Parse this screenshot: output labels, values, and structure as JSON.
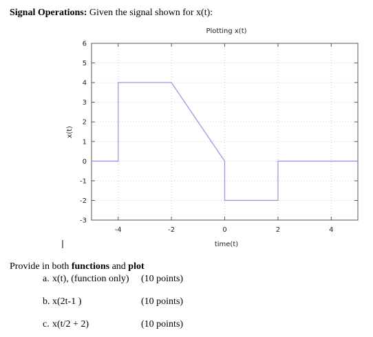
{
  "header": {
    "label": "Signal Operations:",
    "text": "Given the signal shown for x(t):"
  },
  "chart_data": {
    "type": "line",
    "title": "Plotting x(t)",
    "x_label": "time(t)",
    "y_label": "x(t)",
    "x": [
      -5,
      -4,
      -4,
      -2,
      0,
      0,
      2,
      2,
      5
    ],
    "values": [
      0,
      0,
      4,
      4,
      0,
      -2,
      -2,
      0,
      0
    ],
    "color": "#9a9ae0",
    "xlim": [
      -5,
      5
    ],
    "xticks": [
      -4,
      -2,
      0,
      2,
      4
    ],
    "ylim": [
      -3,
      6
    ],
    "yticks": [
      -3,
      -2,
      -1,
      0,
      1,
      2,
      3,
      4,
      5,
      6
    ],
    "grid": true
  },
  "task": {
    "parts": [
      "Provide in both",
      "functions",
      "and",
      "plot"
    ],
    "items": [
      {
        "label": "a.",
        "text": "x(t), (function only)",
        "points": "(10 points)"
      },
      {
        "label": "b.",
        "text": "x(2t-1 )",
        "points": "(10 points)"
      },
      {
        "label": "c.",
        "text": "x(t/2 + 2)",
        "points": "(10 points)"
      }
    ]
  }
}
